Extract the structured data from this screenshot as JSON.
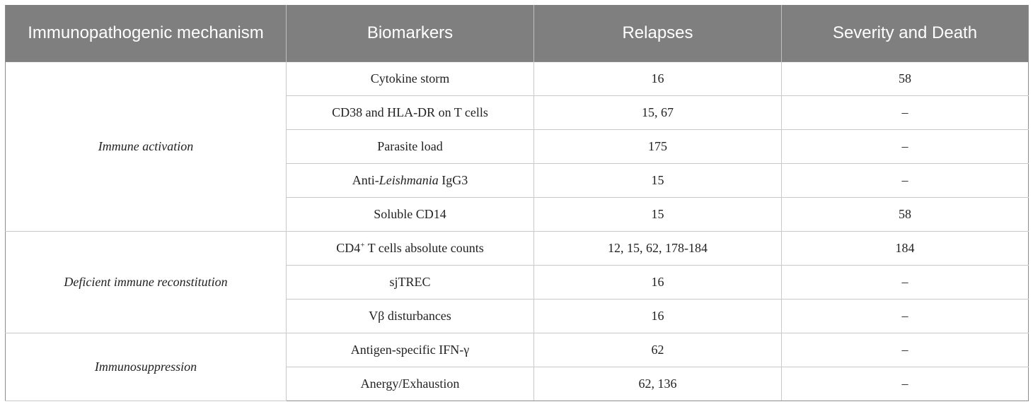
{
  "table": {
    "headers": [
      "Immunopathogenic mechanism",
      "Biomarkers",
      "Relapses",
      "Severity and Death"
    ],
    "groups": [
      {
        "mechanism": "Immune activation",
        "rows": [
          {
            "biomarker": "Cytokine storm",
            "relapses": "16",
            "severity": "58"
          },
          {
            "biomarker": "CD38 and HLA-DR on T cells",
            "relapses": "15, 67",
            "severity": "–"
          },
          {
            "biomarker": "Parasite load",
            "relapses": "175",
            "severity": "–"
          },
          {
            "biomarker_prefix": "Anti-",
            "biomarker_italic": "Leishmania",
            "biomarker_suffix": " IgG3",
            "relapses": "15",
            "severity": "–"
          },
          {
            "biomarker": "Soluble CD14",
            "relapses": "15",
            "severity": "58"
          }
        ]
      },
      {
        "mechanism": "Deficient immune reconstitution",
        "rows": [
          {
            "biomarker_prefix": "CD4",
            "biomarker_sup": "+",
            "biomarker_suffix": " T cells absolute counts",
            "relapses": "12, 15, 62, 178-184",
            "severity": "184"
          },
          {
            "biomarker": "sjTREC",
            "relapses": "16",
            "severity": "–"
          },
          {
            "biomarker": "Vβ disturbances",
            "relapses": "16",
            "severity": "–"
          }
        ]
      },
      {
        "mechanism": "Immunosuppression",
        "rows": [
          {
            "biomarker": "Antigen-specific IFN-γ",
            "relapses": "62",
            "severity": "–"
          },
          {
            "biomarker": "Anergy/Exhaustion",
            "relapses": "62, 136",
            "severity": "–"
          }
        ]
      }
    ]
  }
}
